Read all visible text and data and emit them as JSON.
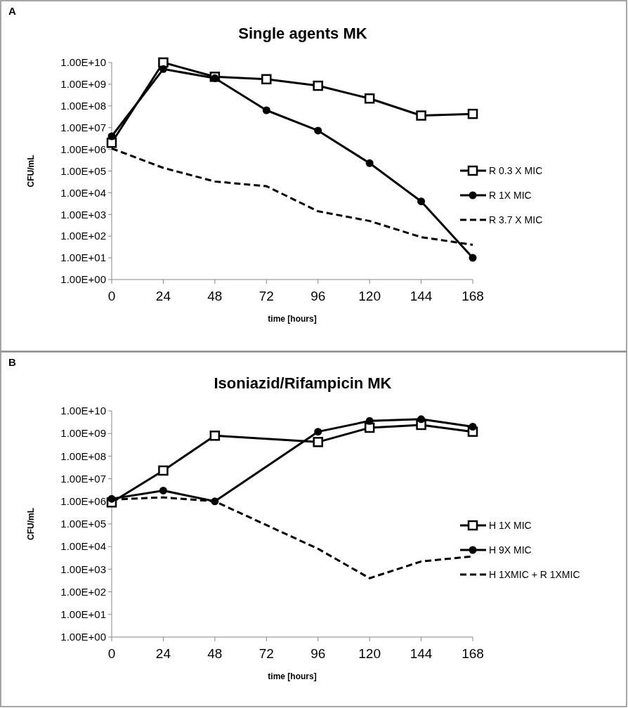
{
  "chart_data": [
    {
      "type": "line",
      "title": "Single agents MK",
      "xlabel": "time [hours]",
      "ylabel": "CFU/mL",
      "annotations": [
        "A"
      ],
      "log": "y",
      "legend": "right",
      "grid": false,
      "xlim": [
        0,
        168
      ],
      "xticks": [
        0,
        24,
        48,
        72,
        96,
        120,
        144,
        168
      ],
      "ylim": [
        1,
        10000000000
      ],
      "yticks": [
        {
          "value": 1,
          "label": "1.00E+00"
        },
        {
          "value": 10,
          "label": "1.00E+01"
        },
        {
          "value": 100,
          "label": "1.00E+02"
        },
        {
          "value": 1000,
          "label": "1.00E+03"
        },
        {
          "value": 10000,
          "label": "1.00E+04"
        },
        {
          "value": 100000,
          "label": "1.00E+05"
        },
        {
          "value": 1000000,
          "label": "1.00E+06"
        },
        {
          "value": 10000000,
          "label": "1.00E+07"
        },
        {
          "value": 100000000,
          "label": "1.00E+08"
        },
        {
          "value": 1000000000,
          "label": "1.00E+09"
        },
        {
          "value": 10000000000,
          "label": "1.00E+10"
        }
      ],
      "series": [
        {
          "name": "R 0.3 X MIC",
          "color": "#000000",
          "marker": "square",
          "line_style": "solid",
          "x": [
            0,
            24,
            48,
            72,
            96,
            120,
            144,
            168
          ],
          "values": [
            2000000,
            10000000000,
            2200000000,
            1700000000,
            850000000,
            220000000,
            36000000,
            43000000
          ]
        },
        {
          "name": "R 1X MIC",
          "color": "#000000",
          "marker": "circle",
          "line_style": "solid",
          "x": [
            0,
            24,
            48,
            72,
            96,
            120,
            144,
            168
          ],
          "values": [
            4000000,
            5000000000,
            1900000000,
            63000000,
            7300000,
            230000,
            4000,
            10
          ]
        },
        {
          "name": "R 3.7 X MIC",
          "color": "#000000",
          "marker": "none",
          "line_style": "dashed",
          "x": [
            0,
            24,
            48,
            72,
            96,
            120,
            144,
            168
          ],
          "values": [
            1100000,
            140000,
            33000,
            20000,
            1400,
            500,
            90,
            40
          ]
        }
      ]
    },
    {
      "type": "line",
      "title": "Isoniazid/Rifampicin MK",
      "xlabel": "time [hours]",
      "ylabel": "CFU/mL",
      "annotations": [
        "B"
      ],
      "log": "y",
      "legend": "right",
      "grid": false,
      "xlim": [
        0,
        168
      ],
      "xticks": [
        0,
        24,
        48,
        72,
        96,
        120,
        144,
        168
      ],
      "ylim": [
        1,
        10000000000
      ],
      "yticks": [
        {
          "value": 1,
          "label": "1.00E+00"
        },
        {
          "value": 10,
          "label": "1.00E+01"
        },
        {
          "value": 100,
          "label": "1.00E+02"
        },
        {
          "value": 1000,
          "label": "1.00E+03"
        },
        {
          "value": 10000,
          "label": "1.00E+04"
        },
        {
          "value": 100000,
          "label": "1.00E+05"
        },
        {
          "value": 1000000,
          "label": "1.00E+06"
        },
        {
          "value": 10000000,
          "label": "1.00E+07"
        },
        {
          "value": 100000000,
          "label": "1.00E+08"
        },
        {
          "value": 1000000000,
          "label": "1.00E+09"
        },
        {
          "value": 10000000000,
          "label": "1.00E+10"
        }
      ],
      "series": [
        {
          "name": "H 1X MIC",
          "color": "#000000",
          "marker": "square",
          "line_style": "solid",
          "x": [
            0,
            24,
            48,
            96,
            120,
            144,
            168
          ],
          "values": [
            900000,
            23000000,
            800000000,
            420000000,
            1800000000,
            2400000000,
            1200000000
          ]
        },
        {
          "name": "H 9X MIC",
          "color": "#000000",
          "marker": "circle",
          "line_style": "solid",
          "x": [
            0,
            24,
            48,
            96,
            120,
            144,
            168
          ],
          "values": [
            1300000,
            3000000,
            1000000,
            1200000000,
            3600000000,
            4300000000,
            2000000000
          ]
        },
        {
          "name": "H 1XMIC + R 1XMIC",
          "color": "#000000",
          "marker": "none",
          "line_style": "dashed",
          "x": [
            0,
            24,
            48,
            96,
            120,
            144,
            168
          ],
          "values": [
            1200000,
            1500000,
            1000000,
            8000,
            400,
            2200,
            3700
          ]
        }
      ]
    }
  ]
}
